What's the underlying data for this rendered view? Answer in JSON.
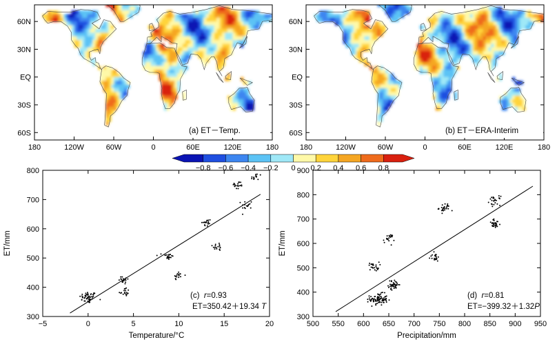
{
  "maps": [
    {
      "label": "(a)  ET－Temp.",
      "lat_labels": [
        "60N",
        "30N",
        "EQ",
        "30S",
        "60S"
      ],
      "lon_labels": [
        "180",
        "120W",
        "60W",
        "0",
        "60E",
        "120E",
        "180"
      ]
    },
    {
      "label": "(b)  ET－ERA-Interim",
      "lat_labels": [
        "60N",
        "30N",
        "EQ",
        "30S",
        "60S"
      ],
      "lon_labels": [
        "180",
        "120W",
        "60W",
        "0",
        "60E",
        "120E",
        "180"
      ]
    }
  ],
  "colorbar": {
    "labels": [
      "−0.8",
      "−0.6",
      "−0.4",
      "−0.2",
      "0",
      "0.2",
      "0.4",
      "0.6",
      "0.8"
    ],
    "colors": [
      "#0a14b4",
      "#1f4fe0",
      "#3d86f0",
      "#5cc3f5",
      "#9fe8f7",
      "#fff9a8",
      "#ffd43b",
      "#f5a623",
      "#ef6b1c",
      "#d9200f"
    ]
  },
  "chart_data": [
    {
      "type": "scatter",
      "panel": "(c)",
      "xlabel": "Temperature/°C",
      "ylabel": "ET/mm",
      "xlim": [
        -5,
        20
      ],
      "ylim": [
        300,
        800
      ],
      "xticks": [
        "−5",
        "0",
        "5",
        "10",
        "15",
        "20"
      ],
      "yticks": [
        "300",
        "400",
        "500",
        "600",
        "700",
        "800"
      ],
      "clusters": [
        {
          "x": 0,
          "y": 365,
          "n": 50
        },
        {
          "x": 4,
          "y": 425,
          "n": 18
        },
        {
          "x": 4,
          "y": 385,
          "n": 18
        },
        {
          "x": 8.8,
          "y": 505,
          "n": 22
        },
        {
          "x": 10,
          "y": 440,
          "n": 16
        },
        {
          "x": 13,
          "y": 620,
          "n": 18
        },
        {
          "x": 14.3,
          "y": 540,
          "n": 16
        },
        {
          "x": 16.5,
          "y": 748,
          "n": 20
        },
        {
          "x": 17.5,
          "y": 682,
          "n": 16
        },
        {
          "x": 18.5,
          "y": 775,
          "n": 14
        }
      ],
      "fit": {
        "intercept": 350.42,
        "slope": 19.34,
        "x_range": [
          -2,
          19
        ]
      },
      "r_text": {
        "prefix": "(c)  ",
        "var": "r",
        "value": "=0.93"
      },
      "eq_text": {
        "prefix": "ET=350.42＋19.34 ",
        "var": "T"
      }
    },
    {
      "type": "scatter",
      "panel": "(d)",
      "xlabel": "Precipitation/mm",
      "ylabel": "ET/mm",
      "xlim": [
        500,
        950
      ],
      "ylim": [
        300,
        900
      ],
      "xticks": [
        "500",
        "550",
        "600",
        "650",
        "700",
        "750",
        "800",
        "850",
        "900",
        "950"
      ],
      "yticks": [
        "300",
        "400",
        "500",
        "600",
        "700",
        "800",
        "900"
      ],
      "clusters": [
        {
          "x": 630,
          "y": 370,
          "n": 90
        },
        {
          "x": 660,
          "y": 430,
          "n": 40
        },
        {
          "x": 620,
          "y": 505,
          "n": 25
        },
        {
          "x": 650,
          "y": 620,
          "n": 20
        },
        {
          "x": 740,
          "y": 542,
          "n": 20
        },
        {
          "x": 760,
          "y": 745,
          "n": 28
        },
        {
          "x": 860,
          "y": 775,
          "n": 25
        },
        {
          "x": 860,
          "y": 680,
          "n": 30
        }
      ],
      "fit": {
        "intercept": -399.32,
        "slope": 1.32,
        "x_range": [
          545,
          935
        ]
      },
      "r_text": {
        "prefix": "(d)  ",
        "var": "r",
        "value": "=0.81"
      },
      "eq_text": {
        "prefix": "ET=−399.32＋1.32",
        "var": "P"
      }
    }
  ]
}
